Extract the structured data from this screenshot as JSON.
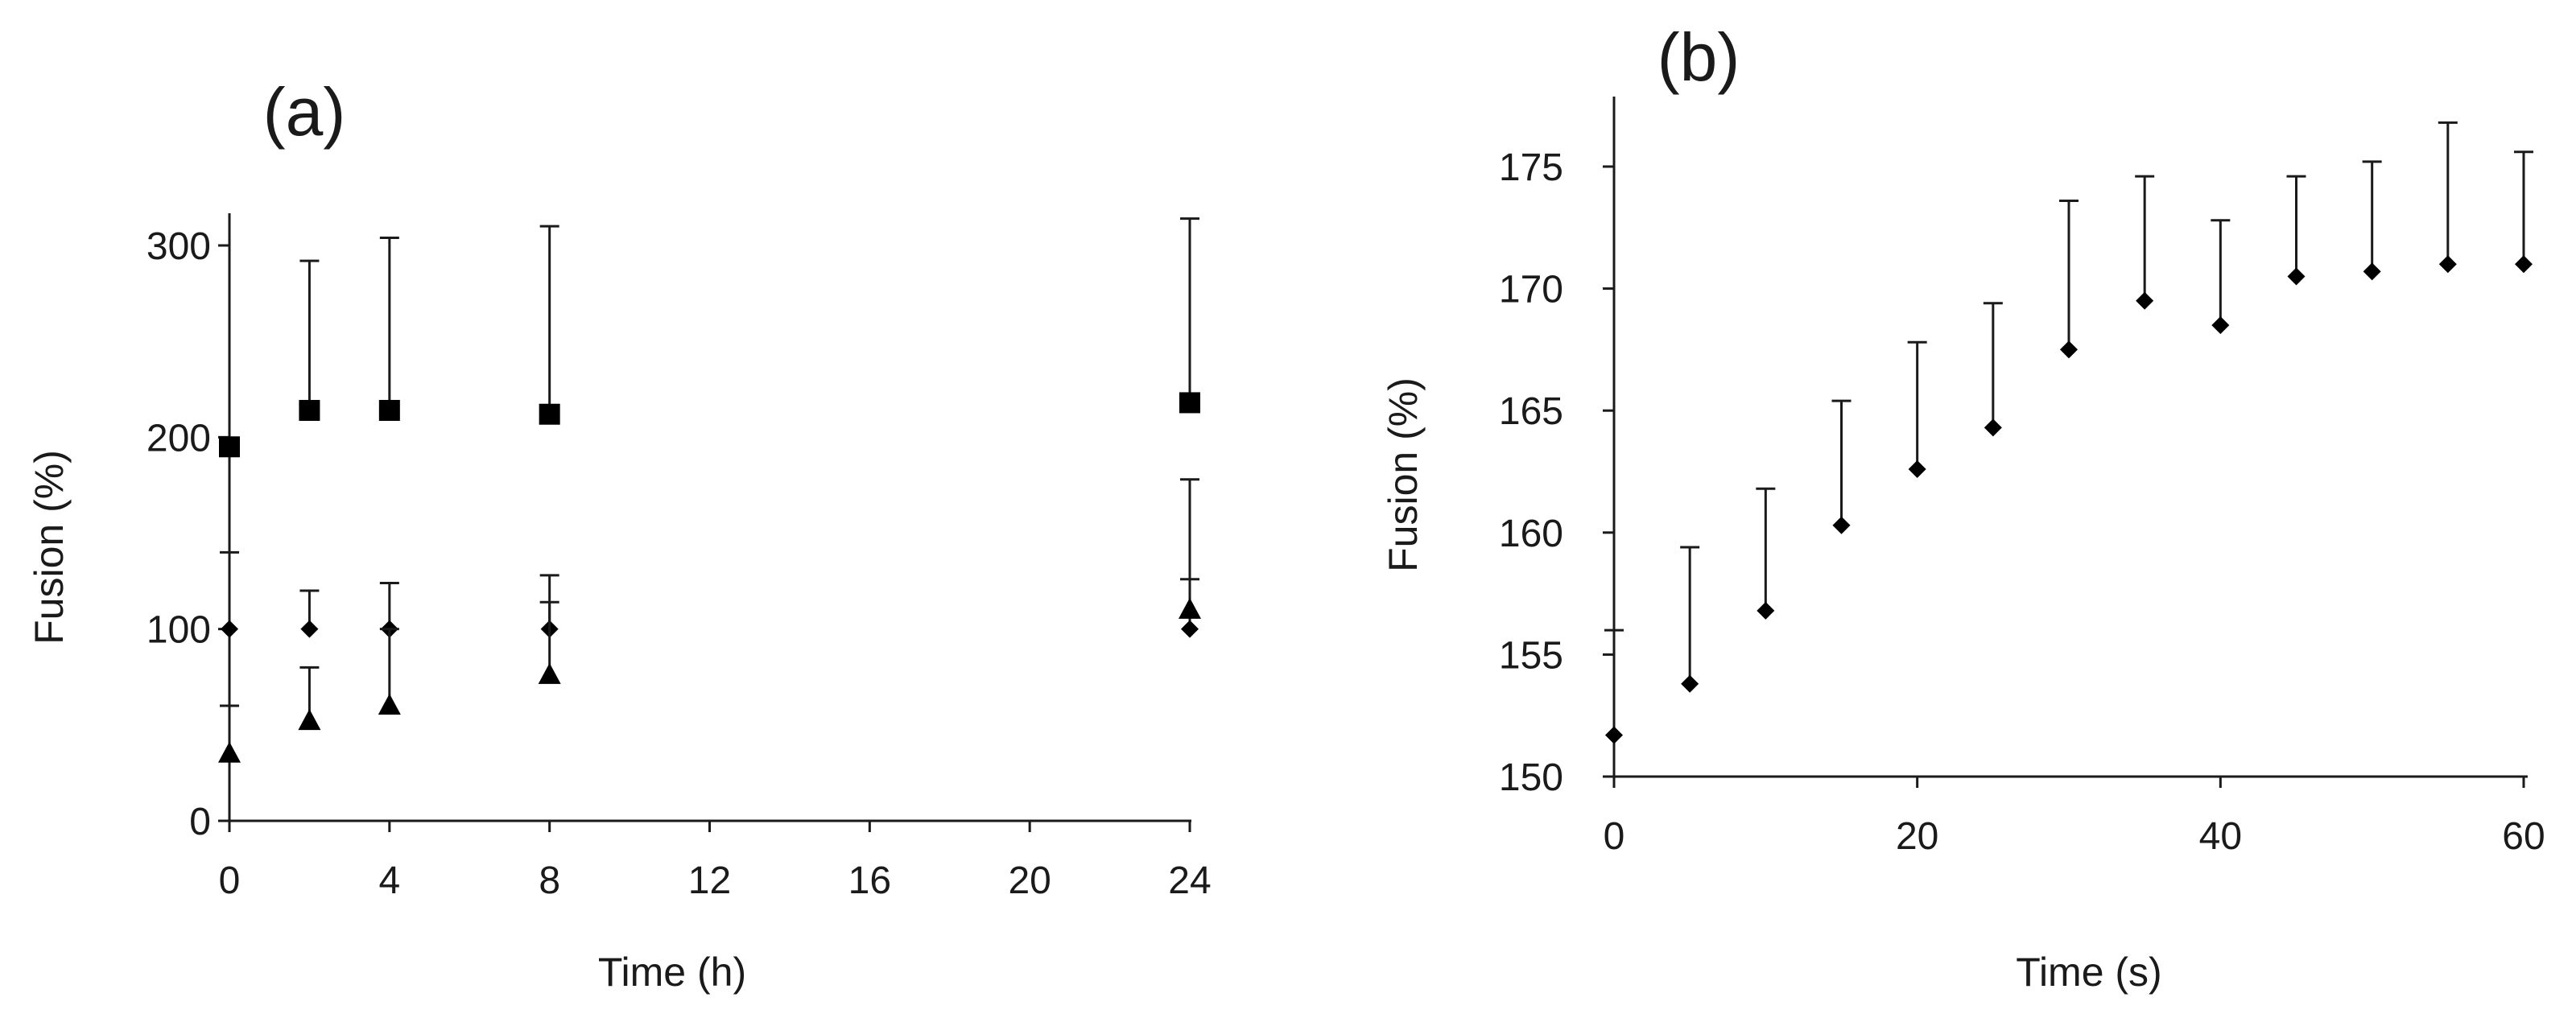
{
  "chart_data": [
    {
      "panel_label": "(a)",
      "type": "scatter",
      "xlabel": "Time (h)",
      "ylabel": "Fusion  (%)",
      "xlim": [
        0,
        24
      ],
      "ylim": [
        0,
        300
      ],
      "x_ticks": [
        0,
        4,
        8,
        12,
        16,
        20,
        24
      ],
      "y_ticks": [
        0,
        100,
        200,
        300
      ],
      "x_tick_labels": [
        "0",
        "4",
        "8",
        "12",
        "16",
        "20",
        "24"
      ],
      "y_tick_labels": [
        "0",
        "100",
        "200",
        "300"
      ],
      "series": [
        {
          "marker": "square",
          "x": [
            0,
            2,
            4,
            8,
            24
          ],
          "y": [
            195,
            214,
            214,
            212,
            218
          ],
          "error_upper": [
            195,
            292,
            304,
            310,
            314
          ]
        },
        {
          "marker": "diamond",
          "x": [
            0,
            2,
            4,
            8,
            24
          ],
          "y": [
            100,
            100,
            100,
            100,
            100
          ],
          "error_upper": [
            140,
            120,
            124,
            128,
            126
          ]
        },
        {
          "marker": "triangle",
          "x": [
            0,
            2,
            4,
            8,
            24
          ],
          "y": [
            35,
            52,
            60,
            76,
            110
          ],
          "error_upper": [
            60,
            80,
            100,
            114,
            178
          ]
        }
      ]
    },
    {
      "panel_label": "(b)",
      "type": "scatter",
      "xlabel": "Time (s)",
      "ylabel": "Fusion  (%)",
      "xlim": [
        0,
        60
      ],
      "ylim": [
        150,
        177
      ],
      "x_ticks": [
        0,
        20,
        40,
        60
      ],
      "y_ticks": [
        150,
        155,
        160,
        165,
        170,
        175
      ],
      "x_tick_labels": [
        "0",
        "20",
        "40",
        "60"
      ],
      "y_tick_labels": [
        "150",
        "155",
        "160",
        "165",
        "170",
        "175"
      ],
      "series": [
        {
          "marker": "diamond",
          "x": [
            0,
            5,
            10,
            15,
            20,
            25,
            30,
            35,
            40,
            45,
            50,
            55,
            60
          ],
          "y": [
            151.7,
            153.8,
            156.8,
            160.3,
            162.6,
            164.3,
            167.5,
            169.5,
            168.5,
            170.5,
            170.7,
            171.0,
            171.0
          ],
          "error_upper": [
            156.0,
            159.4,
            161.8,
            165.4,
            167.8,
            169.4,
            173.6,
            174.6,
            172.8,
            174.6,
            175.2,
            176.8,
            175.6
          ]
        }
      ]
    }
  ]
}
